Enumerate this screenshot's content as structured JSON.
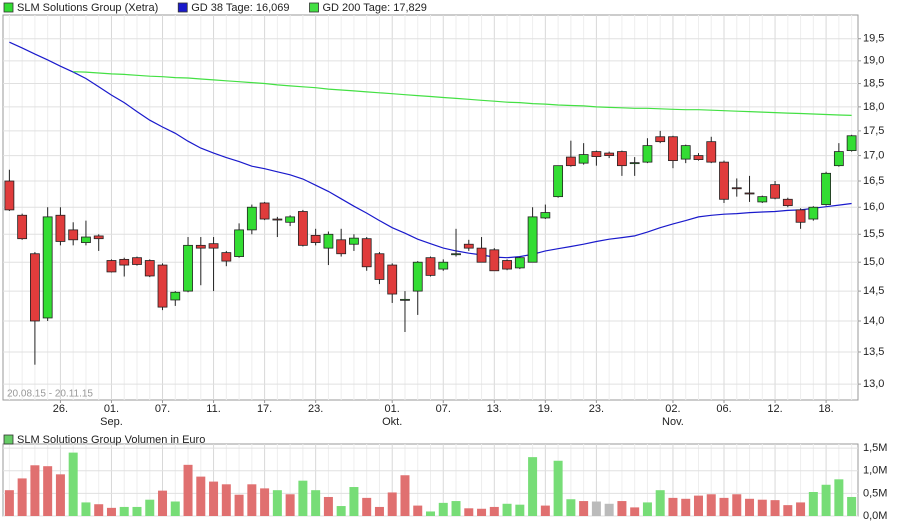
{
  "chart_data": [
    {
      "type": "candlestick",
      "categories": [
        null,
        null,
        null,
        null,
        "26.",
        null,
        null,
        null,
        "01.\nSep.",
        null,
        null,
        null,
        "07.",
        null,
        null,
        null,
        "11.",
        null,
        null,
        null,
        "17.",
        null,
        null,
        null,
        "23.",
        null,
        null,
        null,
        null,
        null,
        "01.\nOkt.",
        null,
        null,
        null,
        "07.",
        null,
        null,
        null,
        "13.",
        null,
        null,
        null,
        "19.",
        null,
        null,
        null,
        "23.",
        null,
        null,
        null,
        null,
        null,
        "02.\nNov.",
        null,
        null,
        null,
        "06.",
        null,
        null,
        null,
        "12.",
        null,
        null,
        null,
        "18.",
        null,
        null
      ],
      "series": [
        {
          "name": "SLM Solutions Group (Xetra)",
          "up_color": "#33dd33",
          "down_color": "#e03c3c",
          "open": [
            16.5,
            15.85,
            15.15,
            14.05,
            15.85,
            15.58,
            15.35,
            15.47,
            15.03,
            15.05,
            15.08,
            15.03,
            14.95,
            14.35,
            14.5,
            15.3,
            15.33,
            15.17,
            15.1,
            15.58,
            16.08,
            15.78,
            15.72,
            15.92,
            15.48,
            15.25,
            15.4,
            15.32,
            15.42,
            15.15,
            14.95,
            14.35,
            14.5,
            15.08,
            14.88,
            15.14,
            15.32,
            15.25,
            15.22,
            15.03,
            14.9,
            15.0,
            15.8,
            16.2,
            16.97,
            16.85,
            17.08,
            17.05,
            17.08,
            16.84,
            16.87,
            17.38,
            17.38,
            16.93,
            17.0,
            17.28,
            16.87,
            16.37,
            16.27,
            16.1,
            16.43,
            16.15,
            15.95,
            15.78,
            16.05,
            16.8,
            17.1
          ],
          "high": [
            16.72,
            15.88,
            15.18,
            16.0,
            16.0,
            15.72,
            15.75,
            15.5,
            15.05,
            15.08,
            15.1,
            15.05,
            14.98,
            14.5,
            15.45,
            15.45,
            15.45,
            15.2,
            15.7,
            16.05,
            16.1,
            15.82,
            15.85,
            15.95,
            15.6,
            15.55,
            15.6,
            15.5,
            15.45,
            15.18,
            14.98,
            14.5,
            15.02,
            15.1,
            15.05,
            15.6,
            15.4,
            15.45,
            15.25,
            15.05,
            15.1,
            16.0,
            16.05,
            16.8,
            17.3,
            17.25,
            17.1,
            17.08,
            17.1,
            16.97,
            17.35,
            17.5,
            17.4,
            17.22,
            17.05,
            17.38,
            16.9,
            16.55,
            16.6,
            16.22,
            16.5,
            16.18,
            15.98,
            16.02,
            16.68,
            17.25,
            17.42
          ],
          "low": [
            15.93,
            15.4,
            13.3,
            14.0,
            15.3,
            15.3,
            15.3,
            15.2,
            14.82,
            14.75,
            14.94,
            14.74,
            14.18,
            14.25,
            14.48,
            14.6,
            14.5,
            14.93,
            15.08,
            15.5,
            15.76,
            15.45,
            15.65,
            15.28,
            15.3,
            14.95,
            15.1,
            15.2,
            14.85,
            14.62,
            14.3,
            13.82,
            14.1,
            14.75,
            14.85,
            15.1,
            15.2,
            15.0,
            14.85,
            14.86,
            14.88,
            15.0,
            15.78,
            16.18,
            16.78,
            16.82,
            16.8,
            16.95,
            16.6,
            16.6,
            16.85,
            17.25,
            16.75,
            16.85,
            16.9,
            16.85,
            16.08,
            16.2,
            16.1,
            16.08,
            16.15,
            16.0,
            15.6,
            15.75,
            16.03,
            16.78,
            17.08
          ],
          "close": [
            15.95,
            15.42,
            14.0,
            15.82,
            15.37,
            15.4,
            15.45,
            15.42,
            14.83,
            14.95,
            14.96,
            14.76,
            14.23,
            14.48,
            15.3,
            15.25,
            15.25,
            15.02,
            15.58,
            16.0,
            15.78,
            15.77,
            15.82,
            15.3,
            15.35,
            15.5,
            15.15,
            15.43,
            14.92,
            14.7,
            14.45,
            14.36,
            15.0,
            14.77,
            15.0,
            15.15,
            15.25,
            15.0,
            14.85,
            14.88,
            15.08,
            15.82,
            15.9,
            16.8,
            16.8,
            17.02,
            16.98,
            17.0,
            16.8,
            16.86,
            17.2,
            17.28,
            16.9,
            17.2,
            16.92,
            16.87,
            16.15,
            16.36,
            16.26,
            16.2,
            16.17,
            16.03,
            15.72,
            16.0,
            16.65,
            17.08,
            17.4
          ]
        },
        {
          "name": "GD 38 Tage: 16,069",
          "type": "line",
          "color": "#1a1acc",
          "values": [
            19.42,
            19.29,
            19.15,
            19.02,
            18.88,
            18.75,
            18.61,
            18.43,
            18.25,
            18.09,
            17.9,
            17.72,
            17.58,
            17.45,
            17.29,
            17.15,
            17.05,
            16.96,
            16.88,
            16.79,
            16.74,
            16.68,
            16.62,
            16.54,
            16.42,
            16.3,
            16.16,
            16.02,
            15.89,
            15.75,
            15.62,
            15.52,
            15.41,
            15.33,
            15.25,
            15.2,
            15.16,
            15.13,
            15.09,
            15.08,
            15.1,
            15.14,
            15.2,
            15.24,
            15.28,
            15.32,
            15.37,
            15.41,
            15.44,
            15.47,
            15.54,
            15.62,
            15.69,
            15.75,
            15.82,
            15.85,
            15.87,
            15.88,
            15.9,
            15.91,
            15.92,
            15.94,
            15.95,
            15.98,
            16.01,
            16.04,
            16.07
          ]
        },
        {
          "name": "GD 200 Tage: 17,829",
          "type": "line",
          "color": "#44e044",
          "values": [
            null,
            null,
            null,
            null,
            null,
            18.76,
            18.75,
            18.73,
            18.71,
            18.7,
            18.68,
            18.66,
            18.65,
            18.63,
            18.62,
            18.6,
            18.58,
            18.56,
            18.54,
            18.52,
            18.5,
            18.47,
            18.45,
            18.43,
            18.41,
            18.38,
            18.36,
            18.34,
            18.32,
            18.3,
            18.28,
            18.26,
            18.24,
            18.22,
            18.2,
            18.18,
            18.16,
            18.14,
            18.12,
            18.1,
            18.09,
            18.07,
            18.06,
            18.04,
            18.03,
            18.02,
            18.0,
            17.99,
            17.98,
            17.97,
            17.97,
            17.96,
            17.95,
            17.94,
            17.94,
            17.93,
            17.92,
            17.91,
            17.9,
            17.89,
            17.88,
            17.87,
            17.86,
            17.85,
            17.84,
            17.83,
            17.82
          ]
        }
      ],
      "ylim": [
        12.76,
        20.05
      ],
      "log_scale": true,
      "grid": true,
      "yticks": [
        {
          "value": 13.0,
          "label": "13,0"
        },
        {
          "value": 13.5,
          "label": "13,5"
        },
        {
          "value": 14.0,
          "label": "14,0"
        },
        {
          "value": 14.5,
          "label": "14,5"
        },
        {
          "value": 15.0,
          "label": "15,0"
        },
        {
          "value": 15.5,
          "label": "15,5"
        },
        {
          "value": 16.0,
          "label": "16,0"
        },
        {
          "value": 16.5,
          "label": "16,5"
        },
        {
          "value": 17.0,
          "label": "17,0"
        },
        {
          "value": 17.5,
          "label": "17,5"
        },
        {
          "value": 18.0,
          "label": "18,0"
        },
        {
          "value": 18.5,
          "label": "18,5"
        },
        {
          "value": 19.0,
          "label": "19,0"
        },
        {
          "value": 19.5,
          "label": "19,5"
        }
      ],
      "range_label": "20.08.15 - 20.11.15"
    },
    {
      "type": "bar",
      "series": [
        {
          "name": "SLM Solutions Group Volumen in Euro",
          "color": "#66cc66",
          "values": [
            570000,
            830000,
            1120000,
            1100000,
            920000,
            1400000,
            300000,
            260000,
            180000,
            200000,
            200000,
            360000,
            560000,
            320000,
            1130000,
            870000,
            760000,
            700000,
            470000,
            700000,
            610000,
            570000,
            480000,
            780000,
            570000,
            420000,
            220000,
            640000,
            400000,
            200000,
            520000,
            900000,
            230000,
            100000,
            290000,
            330000,
            170000,
            160000,
            200000,
            270000,
            250000,
            1300000,
            230000,
            1220000,
            370000,
            330000,
            320000,
            270000,
            330000,
            190000,
            300000,
            570000,
            400000,
            380000,
            450000,
            480000,
            400000,
            480000,
            380000,
            360000,
            350000,
            240000,
            300000,
            530000,
            690000,
            810000,
            420000
          ],
          "colors": [
            "#e07070",
            "#e07070",
            "#e07070",
            "#e07070",
            "#e07070",
            "#77dd77",
            "#77dd77",
            "#e07070",
            "#e07070",
            "#77dd77",
            "#77dd77",
            "#77dd77",
            "#e07070",
            "#77dd77",
            "#e07070",
            "#e07070",
            "#e07070",
            "#e07070",
            "#e07070",
            "#e07070",
            "#e07070",
            "#77dd77",
            "#e07070",
            "#77dd77",
            "#77dd77",
            "#e07070",
            "#77dd77",
            "#77dd77",
            "#e07070",
            "#e07070",
            "#e07070",
            "#e07070",
            "#e07070",
            "#77dd77",
            "#77dd77",
            "#77dd77",
            "#e07070",
            "#e07070",
            "#e07070",
            "#77dd77",
            "#77dd77",
            "#77dd77",
            "#e07070",
            "#77dd77",
            "#77dd77",
            "#e07070",
            "#bbbbbb",
            "#bbbbbb",
            "#e07070",
            "#e07070",
            "#77dd77",
            "#77dd77",
            "#e07070",
            "#e07070",
            "#e07070",
            "#e07070",
            "#e07070",
            "#e07070",
            "#e07070",
            "#e07070",
            "#e07070",
            "#e07070",
            "#e07070",
            "#77dd77",
            "#77dd77",
            "#77dd77",
            "#77dd77"
          ]
        }
      ],
      "ylim": [
        0,
        1590000
      ],
      "grid": true,
      "yticks": [
        {
          "value": 0,
          "label": "0,0M"
        },
        {
          "value": 500000,
          "label": "0,5M"
        },
        {
          "value": 1000000,
          "label": "1,0M"
        },
        {
          "value": 1500000,
          "label": "1,5M"
        }
      ]
    }
  ]
}
